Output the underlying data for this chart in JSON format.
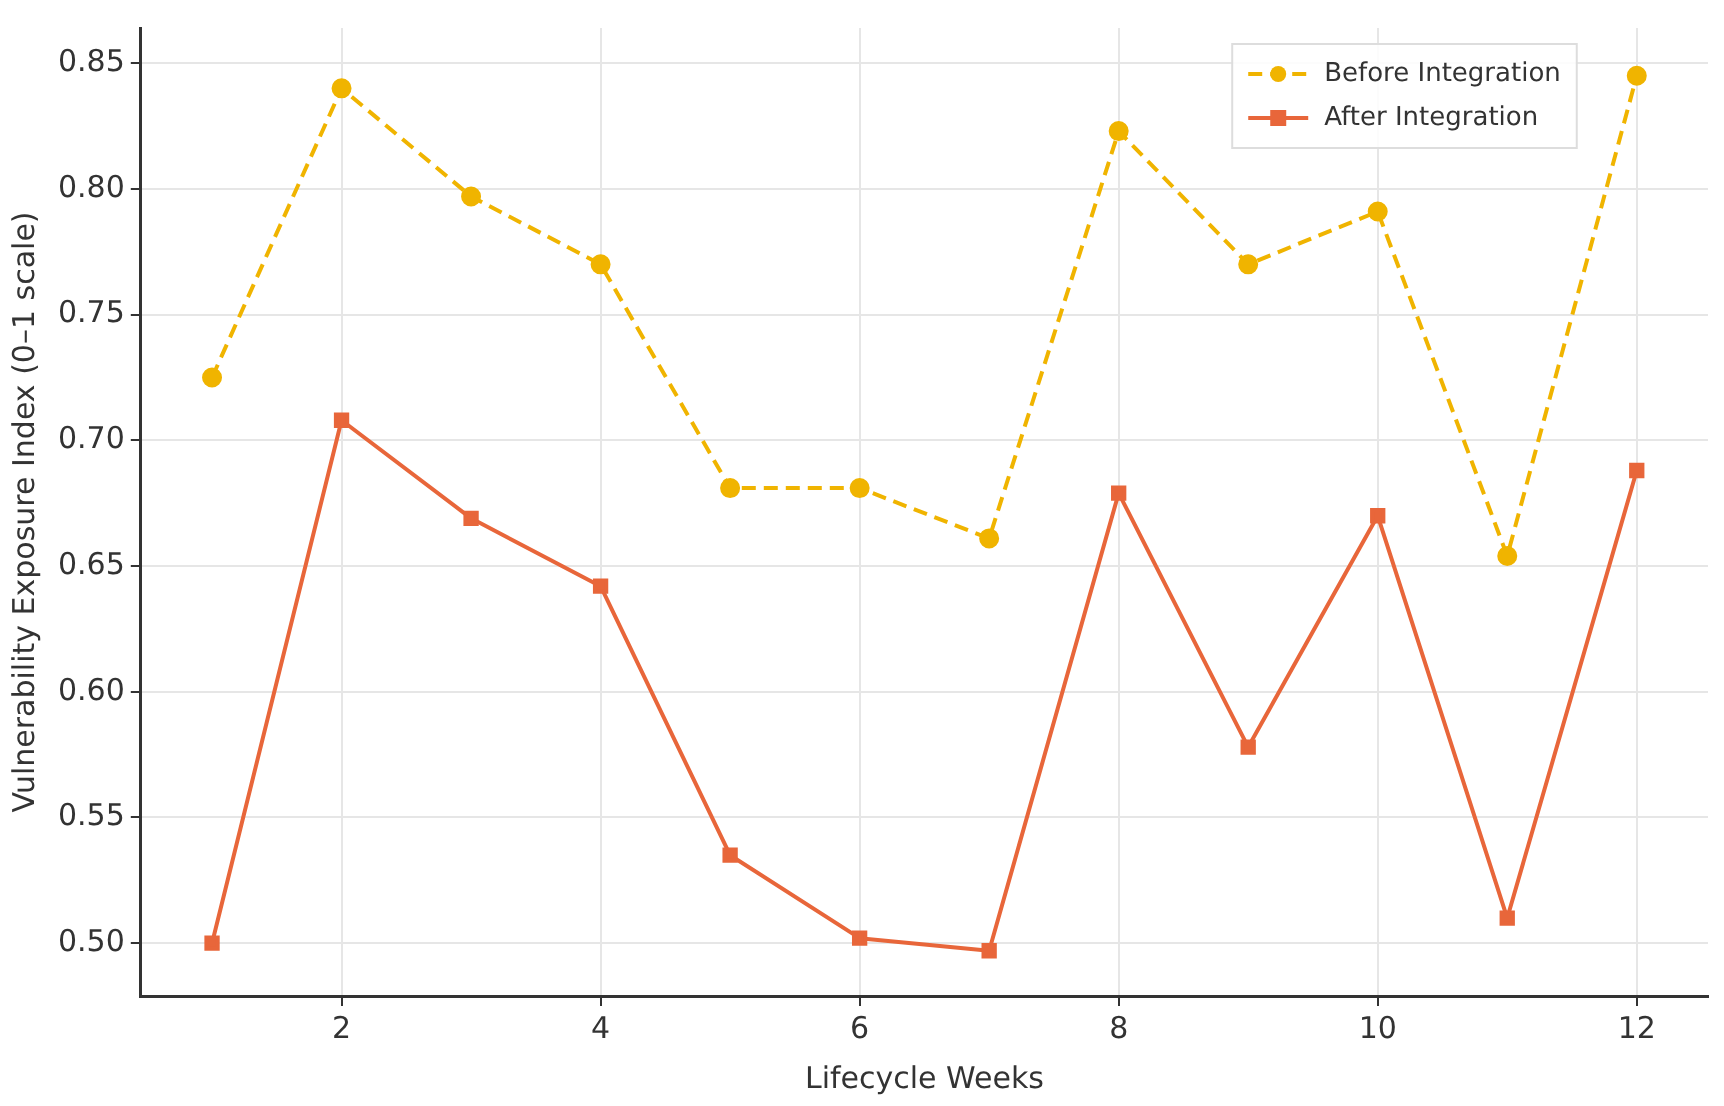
{
  "chart_data": {
    "type": "line",
    "xlabel": "Lifecycle Weeks",
    "ylabel": "Vulnerability Exposure Index (0–1 scale)",
    "x": [
      1,
      2,
      3,
      4,
      5,
      6,
      7,
      8,
      9,
      10,
      11,
      12
    ],
    "series": [
      {
        "name": "Before Integration",
        "color": "#f0b400",
        "line_style": "dashed",
        "marker": "circle",
        "values": [
          0.725,
          0.84,
          0.797,
          0.77,
          0.681,
          0.681,
          0.661,
          0.823,
          0.77,
          0.791,
          0.654,
          0.845
        ]
      },
      {
        "name": "After Integration",
        "color": "#e8663a",
        "line_style": "solid",
        "marker": "square",
        "values": [
          0.5,
          0.708,
          0.669,
          0.642,
          0.535,
          0.502,
          0.497,
          0.679,
          0.578,
          0.67,
          0.51,
          0.688
        ]
      }
    ],
    "xlim": [
      0.45,
      12.55
    ],
    "xticks": [
      2,
      4,
      6,
      8,
      10,
      12
    ],
    "ylim": [
      0.479,
      0.864
    ],
    "yticks": [
      {
        "value": 0.5,
        "label": "0.50"
      },
      0.55,
      {
        "value": 0.6,
        "label": "0.60"
      },
      0.65,
      {
        "value": 0.7,
        "label": "0.70"
      },
      0.75,
      {
        "value": 0.8,
        "label": "0.80"
      },
      0.85
    ],
    "grid": true,
    "legend": "top right"
  }
}
